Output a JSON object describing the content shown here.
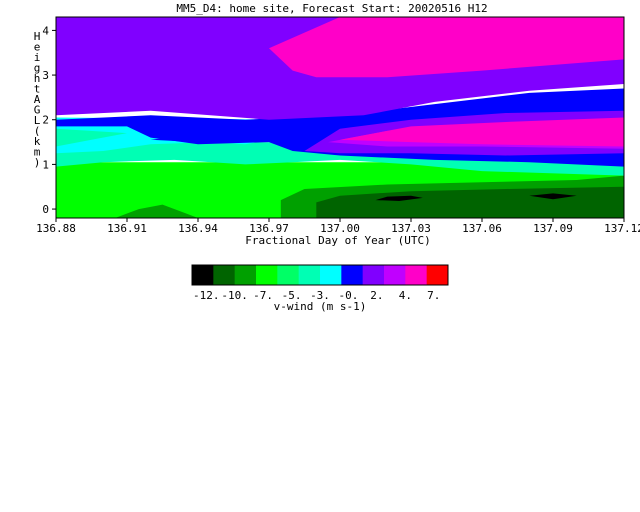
{
  "chart_data": {
    "type": "heatmap",
    "title": "MM5_D4: home site,  Forecast Start: 20020516 H12",
    "xlabel": "Fractional Day of Year (UTC)",
    "ylabel": "Height AGL (km)",
    "xlim": [
      136.88,
      137.12
    ],
    "ylim": [
      -0.2,
      4.3
    ],
    "x_ticks": [
      "136.88",
      "136.91",
      "136.94",
      "136.97",
      "137.00",
      "137.03",
      "137.06",
      "137.09",
      "137.12"
    ],
    "y_ticks": [
      "0",
      "1",
      "2",
      "3",
      "4"
    ],
    "colorbar": {
      "label": "v-wind (m s-1)",
      "tick_labels": [
        "-12.",
        "-10.",
        "-7.",
        "-5.",
        "-3.",
        "-0.",
        "2.",
        "4.",
        "7."
      ],
      "colors": [
        "#000000",
        "#006400",
        "#00a000",
        "#00ff00",
        "#00ff66",
        "#00ffb4",
        "#00ffff",
        "#0000ff",
        "#8000ff",
        "#c000ff",
        "#ff00c8",
        "#ff0000"
      ]
    },
    "regions": [
      {
        "level": "green",
        "color": "#00ff00",
        "points": [
          [
            136.88,
            -0.2
          ],
          [
            137.12,
            -0.2
          ],
          [
            137.12,
            1.05
          ],
          [
            136.88,
            1.05
          ]
        ]
      },
      {
        "level": "dark-green-bump",
        "color": "#00a000",
        "points": [
          [
            136.905,
            -0.2
          ],
          [
            136.915,
            0.0
          ],
          [
            136.925,
            0.1
          ],
          [
            136.935,
            -0.1
          ],
          [
            136.94,
            -0.2
          ]
        ]
      },
      {
        "level": "dark-green",
        "color": "#00a000",
        "points": [
          [
            136.975,
            -0.2
          ],
          [
            136.975,
            0.2
          ],
          [
            136.985,
            0.45
          ],
          [
            137.02,
            0.55
          ],
          [
            137.06,
            0.6
          ],
          [
            137.1,
            0.65
          ],
          [
            137.12,
            0.75
          ],
          [
            137.12,
            -0.2
          ]
        ]
      },
      {
        "level": "very-dark-green",
        "color": "#006400",
        "points": [
          [
            136.99,
            -0.2
          ],
          [
            136.99,
            0.15
          ],
          [
            137.0,
            0.3
          ],
          [
            137.03,
            0.4
          ],
          [
            137.07,
            0.45
          ],
          [
            137.12,
            0.5
          ],
          [
            137.12,
            -0.2
          ]
        ]
      },
      {
        "level": "min-core-1",
        "color": "#000000",
        "points": [
          [
            137.015,
            0.2
          ],
          [
            137.02,
            0.28
          ],
          [
            137.03,
            0.3
          ],
          [
            137.035,
            0.25
          ],
          [
            137.025,
            0.18
          ]
        ]
      },
      {
        "level": "min-core-2",
        "color": "#000000",
        "points": [
          [
            137.08,
            0.3
          ],
          [
            137.09,
            0.35
          ],
          [
            137.1,
            0.3
          ],
          [
            137.09,
            0.22
          ]
        ]
      },
      {
        "level": "aqua",
        "color": "#00ffb4",
        "points": [
          [
            136.88,
            0.95
          ],
          [
            136.9,
            1.05
          ],
          [
            136.93,
            1.1
          ],
          [
            136.96,
            1.0
          ],
          [
            136.98,
            1.05
          ],
          [
            137.0,
            1.1
          ],
          [
            137.03,
            1.0
          ],
          [
            137.06,
            0.85
          ],
          [
            137.12,
            0.75
          ],
          [
            137.12,
            1.5
          ],
          [
            136.88,
            1.5
          ]
        ]
      },
      {
        "level": "cyan",
        "color": "#00ffff",
        "points": [
          [
            136.88,
            1.25
          ],
          [
            136.9,
            1.3
          ],
          [
            136.92,
            1.45
          ],
          [
            136.945,
            1.5
          ],
          [
            136.96,
            1.45
          ],
          [
            136.975,
            1.6
          ],
          [
            136.98,
            2.0
          ],
          [
            136.88,
            2.05
          ]
        ]
      },
      {
        "level": "cyan-tongue",
        "color": "#00ffb4",
        "points": [
          [
            136.88,
            1.4
          ],
          [
            136.895,
            1.55
          ],
          [
            136.91,
            1.7
          ],
          [
            136.88,
            1.8
          ]
        ]
      },
      {
        "level": "blue",
        "color": "#0000ff",
        "points": [
          [
            136.88,
            2.0
          ],
          [
            136.92,
            2.1
          ],
          [
            136.96,
            2.0
          ],
          [
            137.0,
            2.1
          ],
          [
            137.04,
            2.35
          ],
          [
            137.08,
            2.6
          ],
          [
            137.12,
            2.7
          ],
          [
            137.12,
            0.95
          ],
          [
            137.08,
            1.05
          ],
          [
            137.04,
            1.1
          ],
          [
            137.0,
            1.2
          ],
          [
            136.98,
            1.3
          ],
          [
            136.97,
            1.5
          ],
          [
            136.94,
            1.45
          ],
          [
            136.92,
            1.6
          ],
          [
            136.91,
            1.85
          ],
          [
            136.88,
            1.85
          ]
        ]
      },
      {
        "level": "blue-lobe",
        "color": "#0000ff",
        "points": [
          [
            136.92,
            1.55
          ],
          [
            136.935,
            1.65
          ],
          [
            136.955,
            1.6
          ],
          [
            136.94,
            1.5
          ]
        ]
      },
      {
        "level": "purple",
        "color": "#8000ff",
        "points": [
          [
            136.88,
            2.1
          ],
          [
            136.92,
            2.2
          ],
          [
            136.97,
            2.0
          ],
          [
            137.01,
            2.1
          ],
          [
            137.04,
            2.4
          ],
          [
            137.08,
            2.65
          ],
          [
            137.12,
            2.8
          ],
          [
            137.12,
            4.3
          ],
          [
            136.88,
            4.3
          ]
        ]
      },
      {
        "level": "purple-lower",
        "color": "#8000ff",
        "points": [
          [
            136.985,
            1.3
          ],
          [
            137.0,
            1.8
          ],
          [
            137.03,
            2.0
          ],
          [
            137.07,
            2.15
          ],
          [
            137.12,
            2.2
          ],
          [
            137.12,
            1.25
          ],
          [
            137.07,
            1.2
          ],
          [
            137.03,
            1.25
          ],
          [
            137.0,
            1.25
          ]
        ]
      },
      {
        "level": "magenta-lower",
        "color": "#c000ff",
        "points": [
          [
            136.995,
            1.5
          ],
          [
            137.02,
            1.75
          ],
          [
            137.06,
            1.9
          ],
          [
            137.12,
            2.0
          ],
          [
            137.12,
            1.35
          ],
          [
            137.06,
            1.4
          ],
          [
            137.02,
            1.4
          ]
        ]
      },
      {
        "level": "pink-lower",
        "color": "#ff00c8",
        "points": [
          [
            137.0,
            1.55
          ],
          [
            137.03,
            1.85
          ],
          [
            137.07,
            1.95
          ],
          [
            137.12,
            2.05
          ],
          [
            137.12,
            1.4
          ],
          [
            137.06,
            1.45
          ],
          [
            137.03,
            1.5
          ]
        ]
      },
      {
        "level": "pink-upper",
        "color": "#ff00c8",
        "points": [
          [
            136.97,
            3.6
          ],
          [
            136.98,
            3.1
          ],
          [
            136.99,
            2.95
          ],
          [
            137.02,
            2.95
          ],
          [
            137.06,
            3.1
          ],
          [
            137.12,
            3.35
          ],
          [
            137.12,
            4.3
          ],
          [
            137.0,
            4.3
          ]
        ]
      }
    ]
  }
}
